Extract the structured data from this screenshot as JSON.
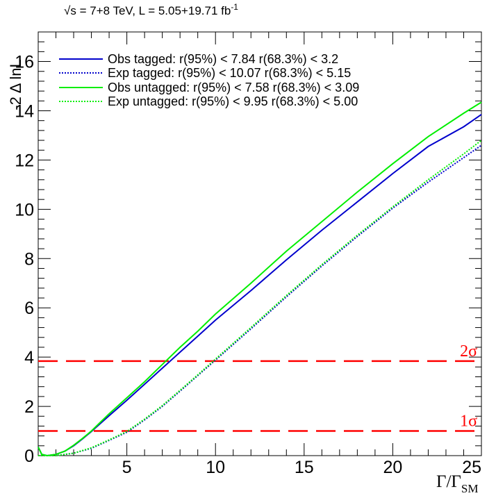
{
  "chart_data": {
    "type": "line",
    "title_parts": {
      "sqrt": "√s",
      "energy": " = 7+8 TeV,   L = 5.05+19.71 fb",
      "exp": "-1"
    },
    "ylabel": "-2 Δ lnL",
    "xlabel": {
      "main": "Γ/Γ",
      "sub": "SM"
    },
    "xlim": [
      0,
      25
    ],
    "ylim": [
      0,
      17.2
    ],
    "x_ticks": [
      5,
      10,
      15,
      20,
      25
    ],
    "y_ticks": [
      0,
      2,
      4,
      6,
      8,
      10,
      12,
      14,
      16
    ],
    "legend_placement": "top-left",
    "series": [
      {
        "name": "Obs tagged: r(95%) < 7.84    r(68.3%) < 3.2",
        "color": "#0000cc",
        "style": "solid",
        "x": [
          0,
          0.2,
          0.5,
          1,
          1.5,
          2,
          2.5,
          3,
          3.5,
          4,
          5,
          6,
          7,
          8,
          9,
          10,
          12,
          14,
          16,
          18,
          20,
          22,
          24,
          25
        ],
        "y": [
          0.35,
          0.05,
          0.0,
          0.05,
          0.18,
          0.4,
          0.68,
          0.98,
          1.3,
          1.62,
          2.25,
          2.9,
          3.55,
          4.2,
          4.85,
          5.5,
          6.7,
          7.95,
          9.15,
          10.3,
          11.45,
          12.55,
          13.35,
          13.85
        ]
      },
      {
        "name": "Exp tagged: r(95%) < 10.07   r(68.3%) < 5.15",
        "color": "#0000cc",
        "style": "dotted",
        "x": [
          0,
          1,
          2,
          3,
          4,
          5,
          6,
          7,
          8,
          9,
          10,
          12,
          14,
          16,
          18,
          20,
          22,
          24,
          25
        ],
        "y": [
          0.0,
          0.0,
          0.1,
          0.3,
          0.62,
          0.95,
          1.45,
          2.0,
          2.62,
          3.25,
          3.88,
          5.15,
          6.45,
          7.7,
          8.9,
          10.05,
          11.1,
          12.1,
          12.6
        ]
      },
      {
        "name": "Obs untagged: r(95%) < 7.58    r(68.3%) < 3.09",
        "color": "#00ee00",
        "style": "solid",
        "x": [
          0,
          0.2,
          0.5,
          1,
          1.5,
          2,
          2.5,
          3,
          3.5,
          4,
          5,
          6,
          7,
          8,
          9,
          10,
          12,
          14,
          16,
          18,
          20,
          22,
          24,
          25
        ],
        "y": [
          0.35,
          0.05,
          0.0,
          0.05,
          0.18,
          0.42,
          0.7,
          1.0,
          1.35,
          1.7,
          2.35,
          3.0,
          3.7,
          4.4,
          5.05,
          5.75,
          7.0,
          8.3,
          9.5,
          10.7,
          11.85,
          12.95,
          13.9,
          14.35
        ]
      },
      {
        "name": "Exp untagged: r(95%) < 9.95    r(68.3%) < 5.00",
        "color": "#00ee00",
        "style": "dotted",
        "x": [
          0,
          1,
          2,
          3,
          4,
          5,
          6,
          7,
          8,
          9,
          10,
          12,
          14,
          16,
          18,
          20,
          22,
          24,
          25
        ],
        "y": [
          0.0,
          0.0,
          0.1,
          0.32,
          0.64,
          0.98,
          1.48,
          2.03,
          2.65,
          3.28,
          3.92,
          5.2,
          6.5,
          7.75,
          8.95,
          10.1,
          11.2,
          12.25,
          12.8
        ]
      }
    ],
    "reference_lines": [
      {
        "y": 1.0,
        "label": "1σ",
        "color": "#ff0000"
      },
      {
        "y": 3.84,
        "label": "2σ",
        "color": "#ff0000"
      }
    ]
  }
}
